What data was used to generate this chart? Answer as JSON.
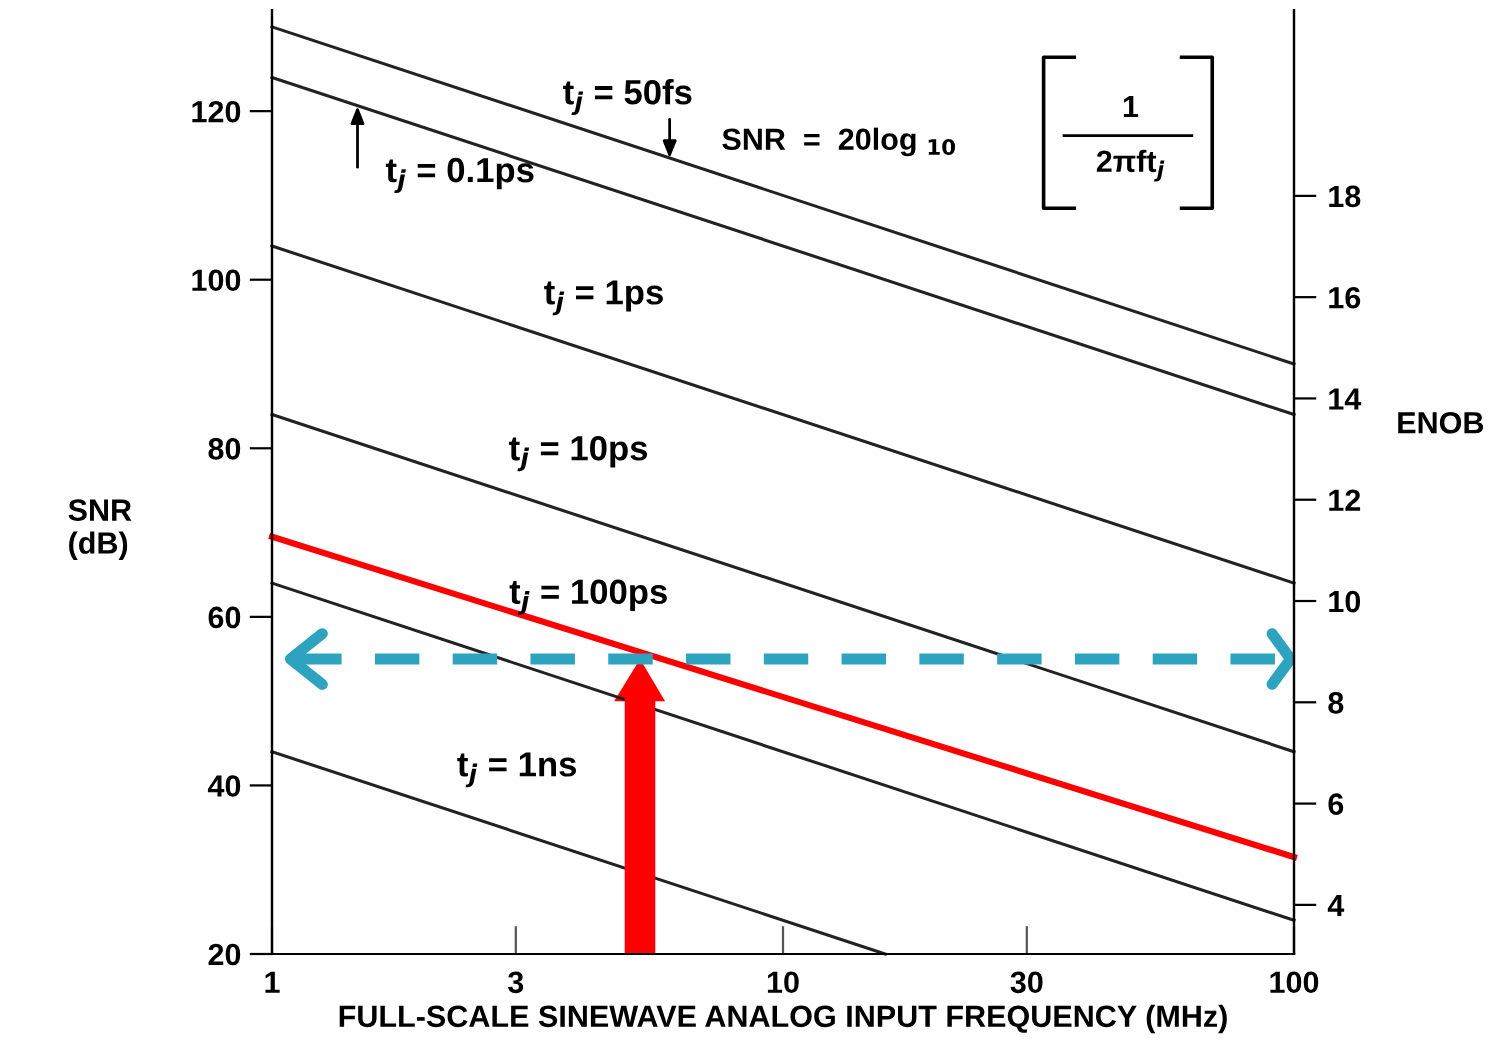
{
  "chart_data": {
    "type": "line",
    "xlabel": "FULL-SCALE SINEWAVE ANALOG INPUT FREQUENCY (MHz)",
    "ylabel": "SNR\n(dB)",
    "y2label": "ENOB",
    "log": "x",
    "xlim": [
      1,
      100
    ],
    "xticks": [
      1,
      3,
      10,
      30,
      100
    ],
    "ylim": [
      20,
      132
    ],
    "yticks": [
      20,
      40,
      60,
      80,
      100,
      120
    ],
    "y2lim": [
      3.03,
      21.67
    ],
    "y2ticks": [
      4,
      6,
      8,
      10,
      12,
      14,
      16,
      18
    ],
    "grid": false,
    "legend": false,
    "marker": "none",
    "line_style": "solid",
    "series": [
      {
        "color": "#222222",
        "x": [
          1,
          100
        ],
        "values": [
          130,
          90
        ]
      },
      {
        "color": "#222222",
        "x": [
          1,
          100
        ],
        "values": [
          124,
          84
        ]
      },
      {
        "color": "#222222",
        "x": [
          1,
          100
        ],
        "values": [
          104,
          64
        ]
      },
      {
        "color": "#222222",
        "x": [
          1,
          100
        ],
        "values": [
          84,
          44
        ]
      },
      {
        "color": "#222222",
        "x": [
          1,
          100
        ],
        "values": [
          64,
          24
        ]
      },
      {
        "color": "#222222",
        "x": [
          1,
          15.85
        ],
        "values": [
          44,
          20
        ]
      },
      {
        "color": "#ff0000",
        "x": [
          1,
          100
        ],
        "values": [
          69.5,
          31.5
        ]
      }
    ],
    "ref_lines": [
      {
        "axis": "y",
        "value": 55,
        "color": "#2ea3c0",
        "line_style": "dashed"
      },
      {
        "axis": "x",
        "value": 5.25,
        "color": "#ff0000"
      }
    ],
    "annotations": [
      {
        "text": "t$_{j}$ = 50fs",
        "x": 6.0,
        "y": 114.4
      },
      {
        "text": "t$_{j}$ = 0.1ps",
        "x": 1.47,
        "y": 120.6
      },
      "t$_{j}$ = 1ps",
      "t$_{j}$ = 10ps",
      "t$_{j}$ = 100ps",
      "t$_{j}$ = 1ns",
      "SNR  =  20log $_{10}$",
      "1",
      "2πft$_{j}$"
    ]
  }
}
